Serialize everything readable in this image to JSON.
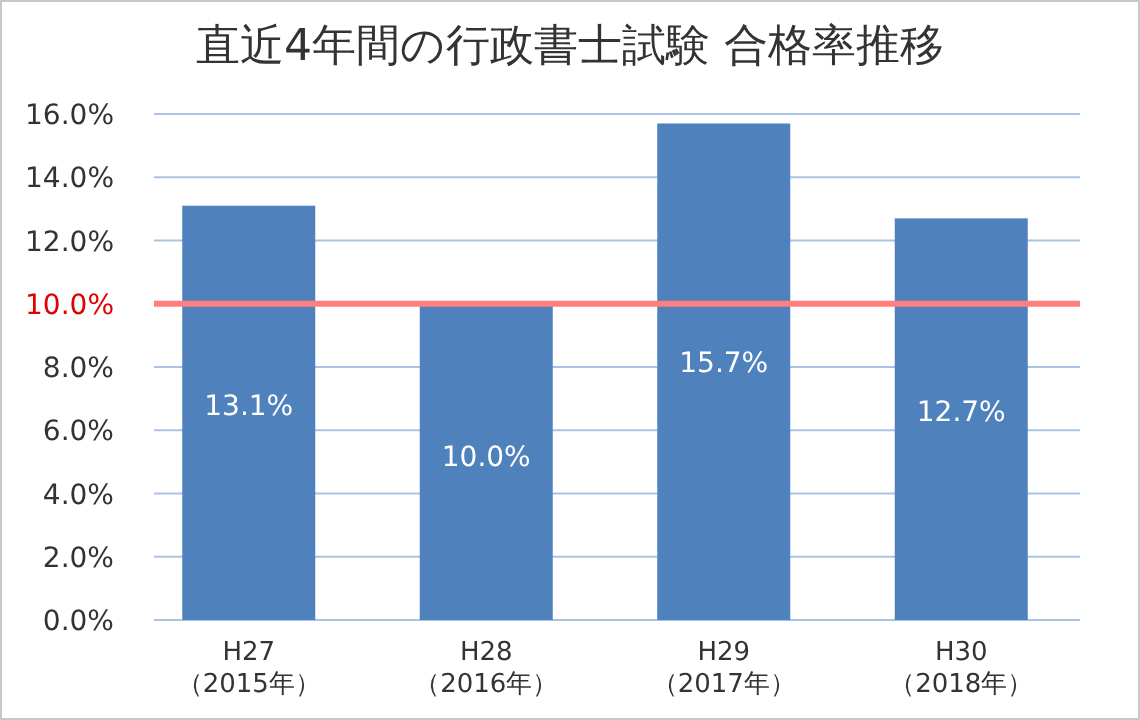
{
  "chart_data": {
    "type": "bar",
    "title": "直近4年間の行政書士試験 合格率推移",
    "categories": [
      "H27\n（2015年）",
      "H28\n（2016年）",
      "H29\n（2017年）",
      "H30\n（2018年）"
    ],
    "values": [
      13.1,
      10.0,
      15.7,
      12.7
    ],
    "color": "#4f81bd",
    "value_labels": [
      "13.1%",
      "10.0%",
      "15.7%",
      "12.7%"
    ],
    "ylim": [
      0,
      16
    ],
    "yticks": [
      {
        "value": 0,
        "label": "0.0%"
      },
      {
        "value": 2,
        "label": "2.0%"
      },
      {
        "value": 4,
        "label": "4.0%"
      },
      {
        "value": 6,
        "label": "6.0%"
      },
      {
        "value": 8,
        "label": "8.0%"
      },
      {
        "value": 10,
        "label": "10.0%"
      },
      {
        "value": 12,
        "label": "12.0%"
      },
      {
        "value": 14,
        "label": "14.0%"
      },
      {
        "value": 16,
        "label": "16.0%"
      }
    ],
    "grid": "y",
    "ref_lines": [
      {
        "axis": "y",
        "value": 10,
        "color": "#ff7f7f"
      }
    ]
  }
}
